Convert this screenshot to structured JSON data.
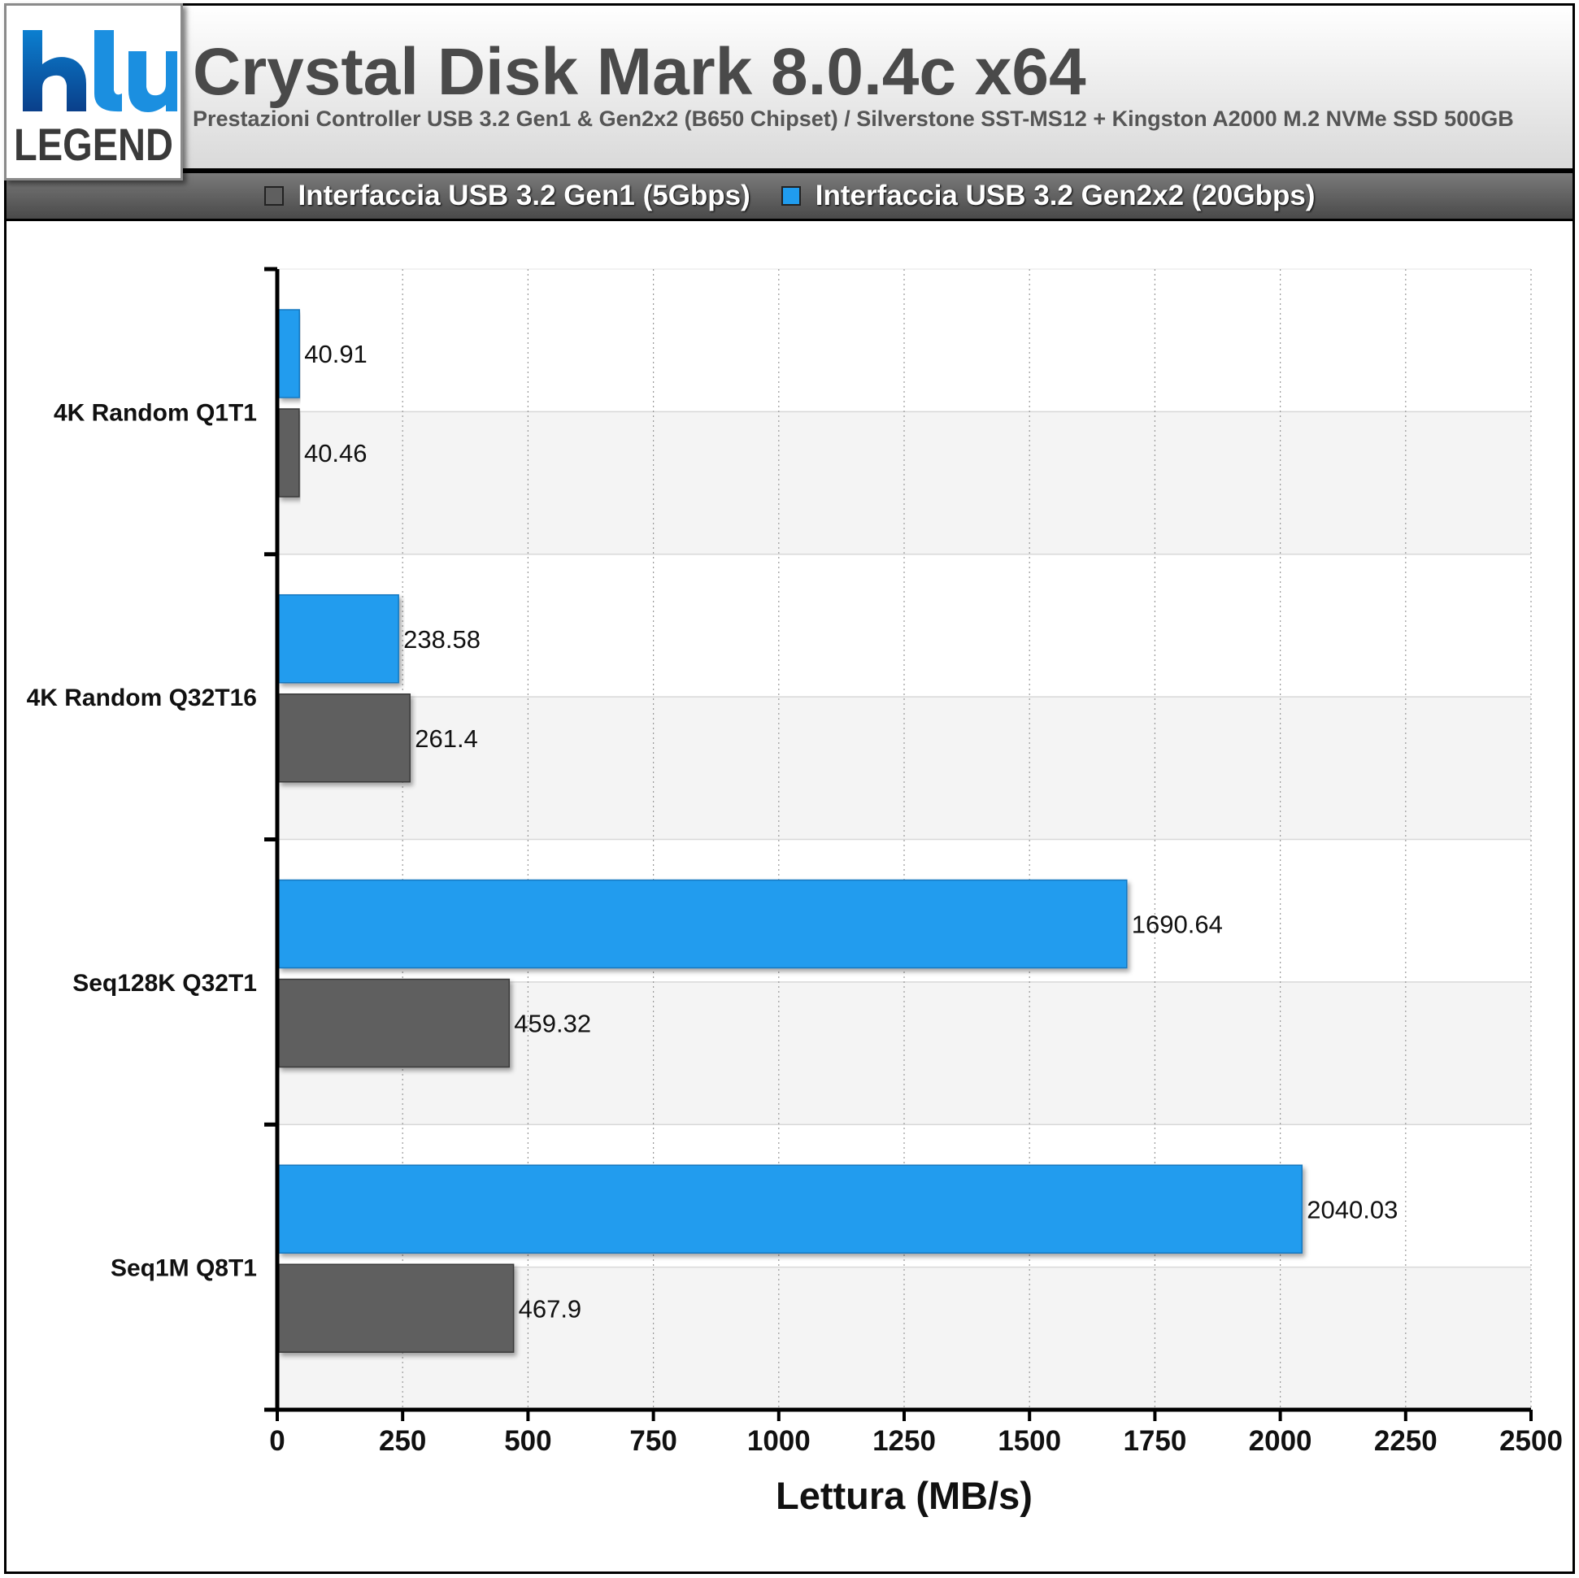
{
  "logo": {
    "text": "LEGEND"
  },
  "header": {
    "title": "Crystal Disk Mark 8.0.4c x64",
    "subtitle": "Prestazioni Controller USB 3.2 Gen1 & Gen2x2 (B650 Chipset) / Silverstone SST-MS12 + Kingston A2000 M.2 NVMe SSD 500GB"
  },
  "legend": [
    {
      "label": "Interfaccia USB 3.2 Gen1 (5Gbps)",
      "color": "#5f5f5f"
    },
    {
      "label": "Interfaccia USB 3.2 Gen2x2 (20Gbps)",
      "color": "#209cee"
    }
  ],
  "chart_data": {
    "type": "bar",
    "orientation": "horizontal",
    "title": "Crystal Disk Mark 8.0.4c x64",
    "subtitle": "Prestazioni Controller USB 3.2 Gen1 & Gen2x2 (B650 Chipset) / Silverstone SST-MS12 + Kingston A2000 M.2 NVMe SSD 500GB",
    "xlabel": "Lettura (MB/s)",
    "ylabel": "",
    "xlim": [
      0,
      2500
    ],
    "xticks": [
      "0",
      "250",
      "500",
      "750",
      "1000",
      "1250",
      "1500",
      "1750",
      "2000",
      "2250",
      "2500"
    ],
    "categories": [
      "4K Random Q1T1",
      "4K Random Q32T16",
      "Seq128K Q32T1",
      "Seq1M Q8T1"
    ],
    "series": [
      {
        "name": "Interfaccia USB 3.2 Gen2x2 (20Gbps)",
        "color": "#209cee",
        "values": [
          40.91,
          238.58,
          1690.64,
          2040.03
        ],
        "labels": [
          "40.91",
          "238.58",
          "1690.64",
          "2040.03"
        ]
      },
      {
        "name": "Interfaccia USB 3.2 Gen1 (5Gbps)",
        "color": "#5f5f5f",
        "values": [
          40.46,
          261.4,
          459.32,
          467.9
        ],
        "labels": [
          "40.46",
          "261.4",
          "459.32",
          "467.9"
        ]
      }
    ],
    "grid": true,
    "legend_position": "top"
  }
}
